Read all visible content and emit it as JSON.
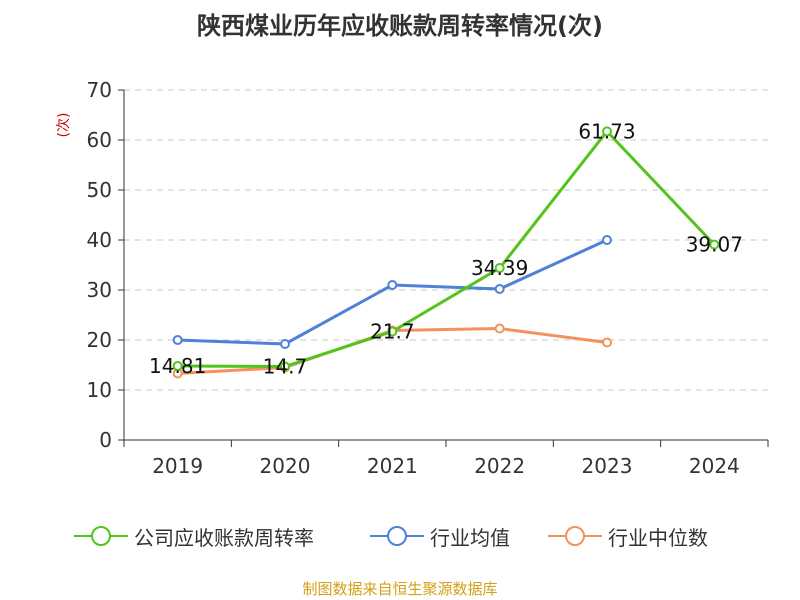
{
  "chart_data": {
    "type": "line",
    "title": "陕西煤业历年应收账款周转率情况(次)",
    "ylabel": "(次)",
    "xlabel": "",
    "categories": [
      "2019",
      "2020",
      "2021",
      "2022",
      "2023",
      "2024"
    ],
    "ylim": [
      0,
      70
    ],
    "yticks": [
      0,
      10,
      20,
      30,
      40,
      50,
      60,
      70
    ],
    "grid": true,
    "legend_position": "bottom",
    "series": [
      {
        "name": "公司应收账款周转率",
        "color": "#52c41a",
        "values": [
          14.81,
          14.7,
          21.7,
          34.39,
          61.73,
          39.07
        ],
        "labels": [
          "14.81",
          "14.7",
          "21.7",
          "34.39",
          "61.73",
          "39.07"
        ]
      },
      {
        "name": "行业均值",
        "color": "#4f81d9",
        "values": [
          20.0,
          19.2,
          31.0,
          30.2,
          40.0,
          null
        ]
      },
      {
        "name": "行业中位数",
        "color": "#f4915c",
        "values": [
          13.3,
          14.5,
          21.9,
          22.3,
          19.5,
          null
        ]
      }
    ]
  },
  "source": "制图数据来自恒生聚源数据库"
}
